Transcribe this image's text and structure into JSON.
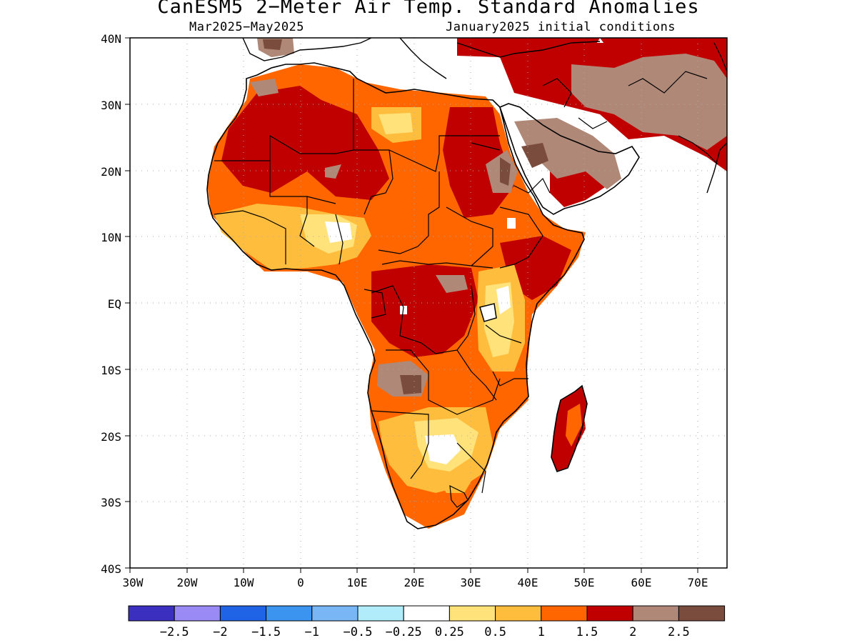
{
  "map": {
    "title": "CanESM5 2−Meter Air Temp. Standard Anomalies",
    "period": "Mar2025−May2025",
    "init": "January2025 initial conditions",
    "lat_labels": [
      "40N",
      "30N",
      "20N",
      "10N",
      "EQ",
      "10S",
      "20S",
      "30S",
      "40S"
    ],
    "lon_labels": [
      "30W",
      "20W",
      "10W",
      "0",
      "10E",
      "20E",
      "30E",
      "40E",
      "50E",
      "60E",
      "70E"
    ]
  },
  "legend": {
    "colors": [
      "#3b2fbf",
      "#9a8af5",
      "#1f63e6",
      "#3b95f0",
      "#79b6f6",
      "#b0ecfa",
      "#ffffff",
      "#ffe27a",
      "#ffbd3d",
      "#ff6600",
      "#c00000",
      "#b08878",
      "#7a4c3e"
    ],
    "labels": [
      "−2.5",
      "−2",
      "−1.5",
      "−1",
      "−0.5",
      "−0.25",
      "0.25",
      "0.5",
      "1",
      "1.5",
      "2",
      "2.5"
    ]
  }
}
